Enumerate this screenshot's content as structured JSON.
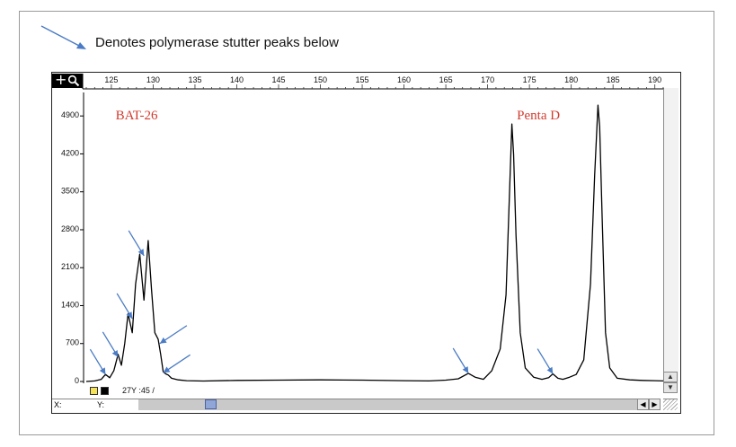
{
  "legend": {
    "text": "Denotes polymerase stutter peaks below",
    "arrow_color": "#4a7bc4"
  },
  "toolbar": {
    "plus_symbol": "+",
    "zoom_icon": "magnifier-icon"
  },
  "status": {
    "text": "27Y :45 /",
    "swatches": [
      "#f4e25b",
      "#000000"
    ],
    "x_label": "X:",
    "y_label": "Y:"
  },
  "scrollbar": {
    "left_arrow": "◀",
    "right_arrow": "▶",
    "up_arrow": "▲",
    "down_arrow": "▼"
  },
  "chart_data": {
    "type": "line",
    "title": "",
    "xlabel": "",
    "ylabel": "",
    "xlim": [
      122,
      191
    ],
    "ylim": [
      0,
      5400
    ],
    "x_ticks": [
      125,
      130,
      135,
      140,
      145,
      150,
      155,
      160,
      165,
      170,
      175,
      180,
      185,
      190
    ],
    "y_ticks": [
      0,
      700,
      1400,
      2100,
      2800,
      3500,
      4200,
      4900
    ],
    "y_tick_labels": [
      "0",
      "700",
      "1400",
      "2100",
      "2800",
      "3500",
      "4200",
      "4900"
    ],
    "annotations": [
      {
        "text": "BAT-26",
        "x": 125.5,
        "y": 4900,
        "color": "#d23a2e"
      },
      {
        "text": "Penta D",
        "x": 173.5,
        "y": 4900,
        "color": "#d23a2e"
      }
    ],
    "stutter_arrows": [
      {
        "x": 124.3,
        "y": 130
      },
      {
        "x": 125.8,
        "y": 450
      },
      {
        "x": 127.5,
        "y": 1160
      },
      {
        "x": 128.9,
        "y": 2320
      },
      {
        "x": 130.8,
        "y": 700
      },
      {
        "x": 131.2,
        "y": 160
      },
      {
        "x": 167.7,
        "y": 150
      },
      {
        "x": 177.8,
        "y": 140
      }
    ],
    "series": [
      {
        "color": "#000000",
        "x": [
          122,
          123,
          123.8,
          124.3,
          124.8,
          125.3,
          125.8,
          126.2,
          126.6,
          127.0,
          127.5,
          127.9,
          128.4,
          128.9,
          129.4,
          129.8,
          130.2,
          130.6,
          130.9,
          131.2,
          131.5,
          131.8,
          132.2,
          133,
          134,
          136,
          140,
          145,
          150,
          155,
          160,
          163,
          165,
          166.5,
          167.7,
          168.5,
          169.5,
          170.5,
          171.5,
          172.2,
          172.6,
          172.9,
          173.1,
          173.4,
          173.9,
          174.5,
          175.5,
          176.5,
          177.3,
          177.8,
          178.4,
          179,
          179.8,
          180.6,
          181.5,
          182.3,
          182.8,
          183.2,
          183.4,
          183.7,
          184.1,
          184.6,
          185.5,
          187,
          188.5,
          190,
          191
        ],
        "y": [
          0,
          10,
          40,
          130,
          70,
          200,
          500,
          300,
          700,
          1250,
          900,
          1800,
          2350,
          1500,
          2600,
          1700,
          900,
          780,
          500,
          180,
          140,
          120,
          60,
          30,
          15,
          8,
          20,
          25,
          30,
          25,
          15,
          10,
          25,
          50,
          150,
          80,
          40,
          200,
          600,
          1600,
          3400,
          4750,
          4200,
          2700,
          900,
          250,
          80,
          40,
          70,
          140,
          60,
          40,
          80,
          130,
          400,
          1800,
          3800,
          5100,
          4700,
          3000,
          900,
          250,
          60,
          30,
          20,
          15,
          10
        ]
      }
    ]
  }
}
